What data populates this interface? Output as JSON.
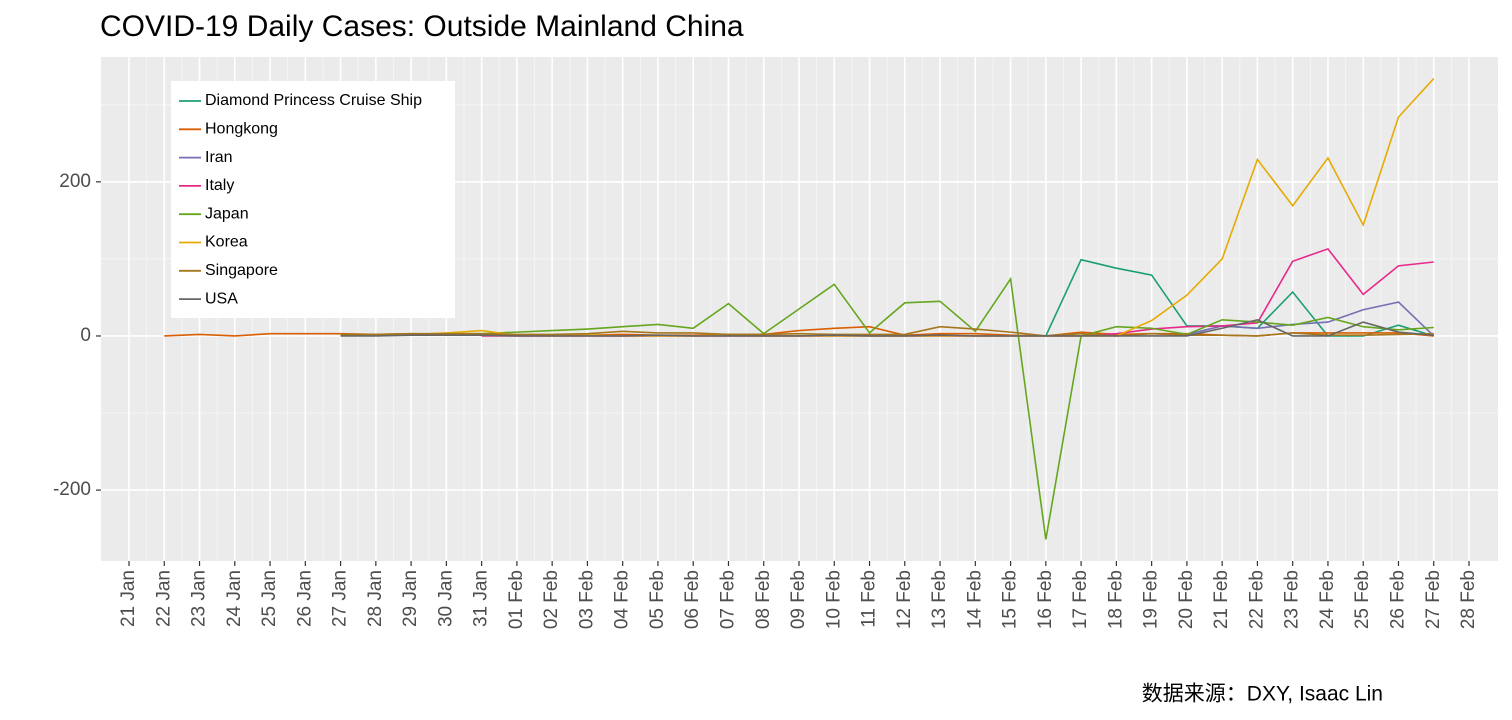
{
  "chart_data": {
    "type": "line",
    "title": "COVID-19 Daily Cases: Outside Mainland China",
    "caption": "数据来源：DXY, Isaac Lin",
    "categories": [
      "21 Jan",
      "22 Jan",
      "23 Jan",
      "24 Jan",
      "25 Jan",
      "26 Jan",
      "27 Jan",
      "28 Jan",
      "29 Jan",
      "30 Jan",
      "31 Jan",
      "01 Feb",
      "02 Feb",
      "03 Feb",
      "04 Feb",
      "05 Feb",
      "06 Feb",
      "07 Feb",
      "08 Feb",
      "09 Feb",
      "10 Feb",
      "11 Feb",
      "12 Feb",
      "13 Feb",
      "14 Feb",
      "15 Feb",
      "16 Feb",
      "17 Feb",
      "18 Feb",
      "19 Feb",
      "20 Feb",
      "21 Feb",
      "22 Feb",
      "23 Feb",
      "24 Feb",
      "25 Feb",
      "26 Feb",
      "27 Feb",
      "28 Feb"
    ],
    "series": [
      {
        "name": "Diamond Princess Cruise Ship",
        "color": "#1b9e77",
        "values": [
          null,
          null,
          null,
          null,
          null,
          null,
          null,
          null,
          null,
          null,
          null,
          null,
          null,
          null,
          null,
          null,
          null,
          null,
          null,
          null,
          null,
          null,
          null,
          null,
          null,
          null,
          0,
          99,
          88,
          79,
          13,
          13,
          10,
          57,
          0,
          0,
          14,
          0,
          null
        ]
      },
      {
        "name": "Hongkong",
        "color": "#d95f02",
        "values": [
          null,
          0,
          2,
          0,
          3,
          3,
          3,
          2,
          3,
          2,
          2,
          1,
          1,
          1,
          2,
          1,
          1,
          2,
          2,
          7,
          10,
          12,
          1,
          3,
          3,
          1,
          0,
          5,
          2,
          3,
          3,
          1,
          0,
          4,
          4,
          4,
          4,
          0,
          null
        ]
      },
      {
        "name": "Iran",
        "color": "#7570b3",
        "values": [
          null,
          null,
          null,
          null,
          null,
          null,
          null,
          null,
          null,
          null,
          null,
          null,
          null,
          null,
          null,
          null,
          null,
          null,
          null,
          null,
          null,
          null,
          null,
          null,
          null,
          null,
          null,
          null,
          null,
          null,
          2,
          13,
          10,
          15,
          18,
          34,
          44,
          0,
          null
        ]
      },
      {
        "name": "Italy",
        "color": "#e7298a",
        "values": [
          null,
          null,
          null,
          null,
          null,
          null,
          null,
          null,
          null,
          null,
          0,
          0,
          0,
          0,
          0,
          0,
          0,
          0,
          0,
          0,
          0,
          0,
          0,
          0,
          0,
          0,
          0,
          0,
          3,
          9,
          12,
          13,
          17,
          97,
          113,
          54,
          91,
          96,
          null
        ]
      },
      {
        "name": "Japan",
        "color": "#66a61e",
        "values": [
          null,
          null,
          null,
          null,
          null,
          null,
          2,
          1,
          2,
          3,
          3,
          5,
          7,
          9,
          12,
          15,
          10,
          42,
          3,
          35,
          67,
          4,
          43,
          45,
          6,
          74,
          -264,
          0,
          12,
          10,
          2,
          21,
          18,
          14,
          24,
          12,
          8,
          11,
          null
        ]
      },
      {
        "name": "Korea",
        "color": "#e6ab02",
        "values": [
          null,
          null,
          null,
          null,
          null,
          null,
          1,
          1,
          2,
          4,
          7,
          1,
          0,
          1,
          0,
          0,
          0,
          1,
          0,
          0,
          0,
          0,
          0,
          0,
          0,
          0,
          0,
          0,
          0,
          20,
          53,
          100,
          229,
          169,
          231,
          144,
          284,
          334,
          null
        ]
      },
      {
        "name": "Singapore",
        "color": "#a6761d",
        "values": [
          null,
          null,
          null,
          null,
          null,
          null,
          2,
          2,
          3,
          3,
          3,
          2,
          2,
          3,
          6,
          4,
          4,
          2,
          2,
          3,
          2,
          2,
          2,
          12,
          9,
          5,
          0,
          3,
          0,
          3,
          1,
          1,
          0,
          4,
          1,
          1,
          2,
          3,
          null
        ]
      },
      {
        "name": "USA",
        "color": "#666666",
        "values": [
          null,
          null,
          null,
          null,
          null,
          null,
          0,
          0,
          1,
          1,
          1,
          0,
          0,
          0,
          0,
          1,
          0,
          0,
          0,
          0,
          1,
          0,
          0,
          1,
          0,
          0,
          0,
          0,
          0,
          0,
          0,
          10,
          21,
          0,
          0,
          18,
          5,
          1,
          null
        ]
      }
    ],
    "ylim": [
      -292,
      362
    ],
    "yticks": [
      -200,
      0,
      200
    ],
    "grid": true,
    "legend": "top-left"
  }
}
